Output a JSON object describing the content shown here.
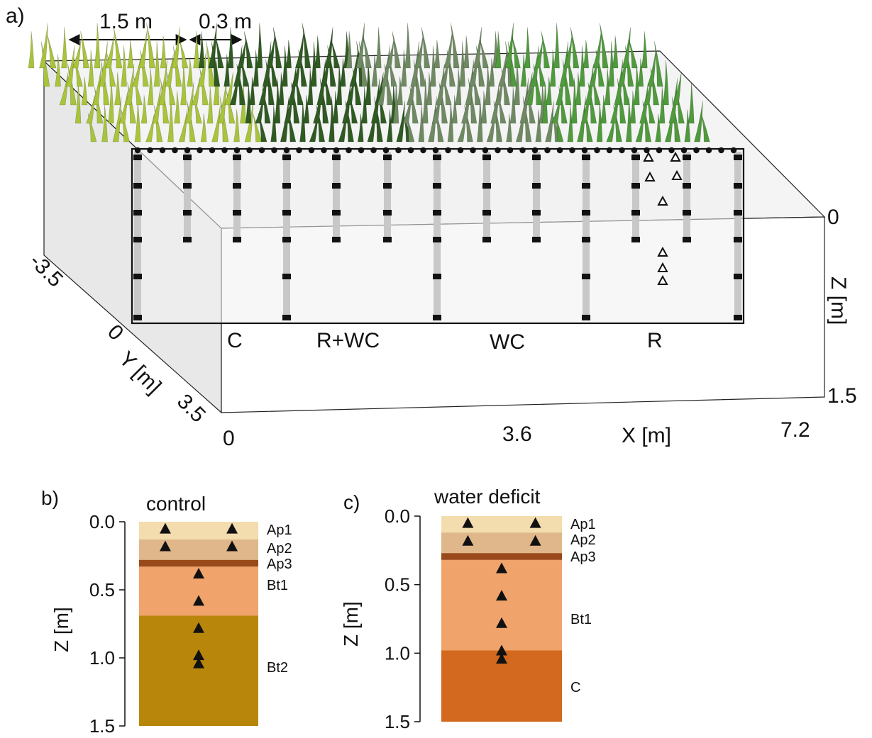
{
  "panel_a": {
    "label": "a)",
    "dim_plot_width": "1.5 m",
    "dim_gap": "0.3 m",
    "treatments": [
      "C",
      "R+WC",
      "WC",
      "R"
    ],
    "x_axis": {
      "label": "X [m]",
      "ticks": [
        "0",
        "3.6",
        "7.2"
      ]
    },
    "y_axis": {
      "label": "Y [m]",
      "ticks": [
        "-3.5",
        "0",
        "3.5"
      ]
    },
    "z_axis": {
      "label": "Z [m]",
      "ticks": [
        "0",
        "1.5"
      ]
    },
    "crop_colors": {
      "C": "#a8c43a",
      "R+WC": "#2f5a22",
      "WC": "#6f8a63",
      "R": "#4f9a3c"
    }
  },
  "panel_b": {
    "label": "b)",
    "title": "control",
    "z_label": "Z [m]",
    "ticks": [
      "0.0",
      "0.5",
      "1.0",
      "1.5"
    ],
    "horizons": [
      {
        "name": "Ap1",
        "top": 0.0,
        "bottom": 0.13,
        "color": "#f3dcae"
      },
      {
        "name": "Ap2",
        "top": 0.13,
        "bottom": 0.28,
        "color": "#dfb78a"
      },
      {
        "name": "Ap3",
        "top": 0.28,
        "bottom": 0.33,
        "color": "#9a4a1a"
      },
      {
        "name": "Bt1",
        "top": 0.33,
        "bottom": 0.69,
        "color": "#f0a36a"
      },
      {
        "name": "Bt2",
        "top": 0.69,
        "bottom": 1.5,
        "color": "#b8860b"
      }
    ],
    "sensors": [
      {
        "col": "left",
        "depth": 0.05
      },
      {
        "col": "right",
        "depth": 0.05
      },
      {
        "col": "left",
        "depth": 0.18
      },
      {
        "col": "right",
        "depth": 0.18
      },
      {
        "col": "center",
        "depth": 0.38
      },
      {
        "col": "center",
        "depth": 0.58
      },
      {
        "col": "center",
        "depth": 0.78
      },
      {
        "col": "center",
        "depth": 0.98
      },
      {
        "col": "center",
        "depth": 1.04
      }
    ]
  },
  "panel_c": {
    "label": "c)",
    "title": "water deficit",
    "z_label": "Z [m]",
    "ticks": [
      "0.0",
      "0.5",
      "1.0",
      "1.5"
    ],
    "horizons": [
      {
        "name": "Ap1",
        "top": 0.0,
        "bottom": 0.12,
        "color": "#f3dcae"
      },
      {
        "name": "Ap2",
        "top": 0.12,
        "bottom": 0.27,
        "color": "#dfb78a"
      },
      {
        "name": "Ap3",
        "top": 0.27,
        "bottom": 0.32,
        "color": "#9a4a1a"
      },
      {
        "name": "Bt1",
        "top": 0.32,
        "bottom": 0.98,
        "color": "#f0a36a"
      },
      {
        "name": "C",
        "top": 0.98,
        "bottom": 1.5,
        "color": "#d2691e"
      }
    ],
    "sensors": [
      {
        "col": "left",
        "depth": 0.05
      },
      {
        "col": "right",
        "depth": 0.05
      },
      {
        "col": "left",
        "depth": 0.18
      },
      {
        "col": "right",
        "depth": 0.18
      },
      {
        "col": "center",
        "depth": 0.38
      },
      {
        "col": "center",
        "depth": 0.58
      },
      {
        "col": "center",
        "depth": 0.78
      },
      {
        "col": "center",
        "depth": 0.98
      },
      {
        "col": "center",
        "depth": 1.04
      }
    ]
  }
}
